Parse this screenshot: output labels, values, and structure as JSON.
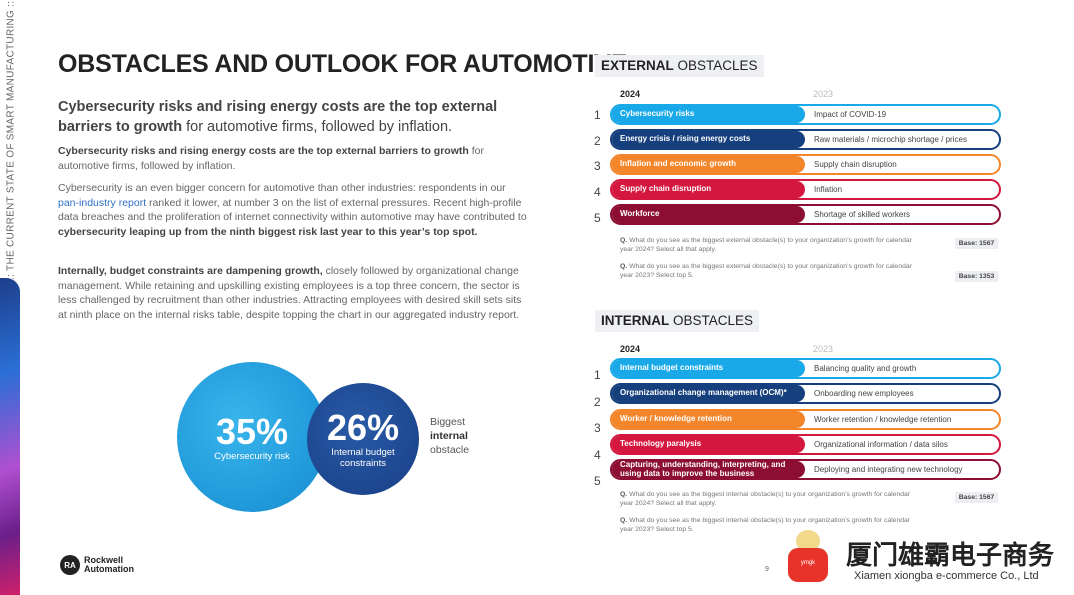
{
  "sidebar": {
    "text": ":: THE CURRENT STATE OF SMART MANUFACTURING ::"
  },
  "title": {
    "light": "OBSTACLES ",
    "bold": "AND OUTLOOK FOR AUTOMOTIVE"
  },
  "lead": {
    "bold": "Cybersecurity risks and rising energy costs are the top external barriers to growth",
    "rest": " for automotive firms, followed by inflation."
  },
  "para1": {
    "bold": "Cybersecurity risks and rising energy costs are the top external barriers to growth",
    "rest": " for automotive firms, followed by inflation."
  },
  "para2": {
    "a": "Cybersecurity is an even bigger concern for automotive than other industries: respondents in our ",
    "link": "pan-industry report",
    "b": " ranked it lower, at number 3 on the list of external pressures. Recent high-profile data breaches and the proliferation of internet connectivity within automotive may have contributed to ",
    "bold": "cybersecurity leaping up from the ninth biggest risk last year to this year’s top spot."
  },
  "para3": {
    "bold": "Internally, budget constraints are dampening growth,",
    "rest": " closely followed by organizational change management. While retaining and upskilling existing employees is a top three concern, the sector is less challenged by recruitment than other industries. Attracting employees with desired skill sets sits at ninth place on the internal risks table, despite topping the chart in our aggregated industry report."
  },
  "stats": [
    {
      "value": "35%",
      "label": "Cybersecurity risk"
    },
    {
      "value": "26%",
      "label": "Internal budget constraints"
    }
  ],
  "stat_caption": {
    "a": "Biggest",
    "bold": "internal",
    "b": "obstacle"
  },
  "colors": [
    "#1aa9e8",
    "#163f7d",
    "#f3862b",
    "#d4173f",
    "#8c0f33"
  ],
  "external": {
    "header_bold": "EXTERNAL",
    "header_rest": " OBSTACLES",
    "year_2024": "2024",
    "year_2023": "2023",
    "rows": [
      {
        "n": "1",
        "y2024": "Cybersecurity risks",
        "y2023": "Impact of COVID-19"
      },
      {
        "n": "2",
        "y2024": "Energy crisis / rising energy costs",
        "y2023": "Raw materials / microchip shortage / prices"
      },
      {
        "n": "3",
        "y2024": "Inflation and economic growth",
        "y2023": "Supply chain disruption"
      },
      {
        "n": "4",
        "y2024": "Supply chain disruption",
        "y2023": "Inflation"
      },
      {
        "n": "5",
        "y2024": "Workforce",
        "y2023": "Shortage of skilled workers"
      }
    ],
    "q1": "What do you see as the biggest external obstacle(s) to your organization’s growth for calendar year 2024? Select all that apply.",
    "base1": "Base: 1567",
    "q2": "What do you see as the biggest external obstacle(s) to your organization’s growth for calendar year 2023? Select top 5.",
    "base2": "Base: 1353"
  },
  "internal": {
    "header_bold": "INTERNAL",
    "header_rest": " OBSTACLES",
    "year_2024": "2024",
    "year_2023": "2023",
    "rows": [
      {
        "n": "1",
        "y2024": "Internal budget constraints",
        "y2023": "Balancing quality and growth"
      },
      {
        "n": "2",
        "y2024": "Organizational change management (OCM)*",
        "y2023": "Onboarding new employees"
      },
      {
        "n": "3",
        "y2024": "Worker / knowledge retention",
        "y2023": "Worker retention / knowledge retention"
      },
      {
        "n": "4",
        "y2024": "Technology paralysis",
        "y2023": "Organizational information / data silos"
      },
      {
        "n": "5",
        "y2024": "Capturing, understanding, interpreting, and using data to improve the business",
        "y2023": "Deploying and integrating new technology"
      }
    ],
    "q1": "What do you see as the biggest internal obstacle(s) to your organization’s growth for calendar year 2024? Select all that apply.",
    "base1": "Base: 1567",
    "q2": "What do you see as the biggest internal obstacle(s) to your organization’s growth for calendar year 2023? Select top 5."
  },
  "q_prefix": "Q.",
  "footer": {
    "logo_mark": "RA",
    "logo_line1": "Rockwell",
    "logo_line2": "Automation",
    "page": "9"
  },
  "watermark": {
    "cn": "厦门雄霸电子商务",
    "en": "Xiamen xiongba e-commerce Co., Ltd",
    "shirt": "ymgk"
  }
}
